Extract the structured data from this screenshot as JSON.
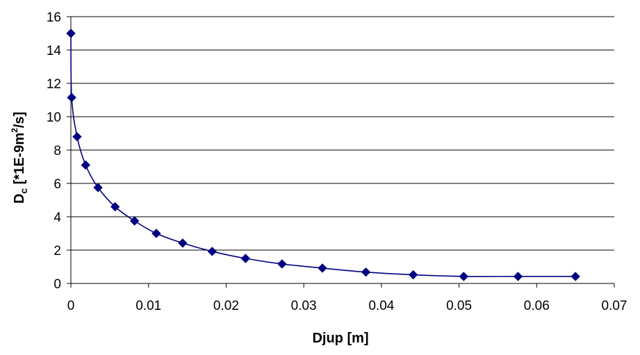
{
  "chart_data": {
    "type": "scatter",
    "title": "",
    "xlabel": "Djup [m]",
    "ylabel": {
      "main": "D",
      "sub": "c",
      "rest1": " [*1E-9m",
      "sup": "2",
      "rest2": "/s]"
    },
    "xlim": [
      0,
      0.07
    ],
    "ylim": [
      0,
      16
    ],
    "x_ticks": [
      "0",
      "0.01",
      "0.02",
      "0.03",
      "0.04",
      "0.05",
      "0.06",
      "0.07"
    ],
    "y_ticks": [
      "0",
      "2",
      "4",
      "6",
      "8",
      "10",
      "12",
      "14",
      "16"
    ],
    "grid": "horizontal",
    "legend": "none",
    "series": [
      {
        "color": "#000080",
        "marker": "diamond",
        "line": "smooth",
        "x": [
          0,
          0.0001,
          0.0008,
          0.0019,
          0.0035,
          0.0057,
          0.0082,
          0.011,
          0.0144,
          0.0182,
          0.0225,
          0.0272,
          0.0324,
          0.038,
          0.0441,
          0.0506,
          0.0576,
          0.065
        ],
        "y": [
          15.0,
          11.15,
          8.8,
          7.1,
          5.75,
          4.6,
          3.75,
          3.0,
          2.42,
          1.92,
          1.5,
          1.17,
          0.92,
          0.68,
          0.52,
          0.42,
          0.42,
          0.42
        ]
      }
    ]
  }
}
